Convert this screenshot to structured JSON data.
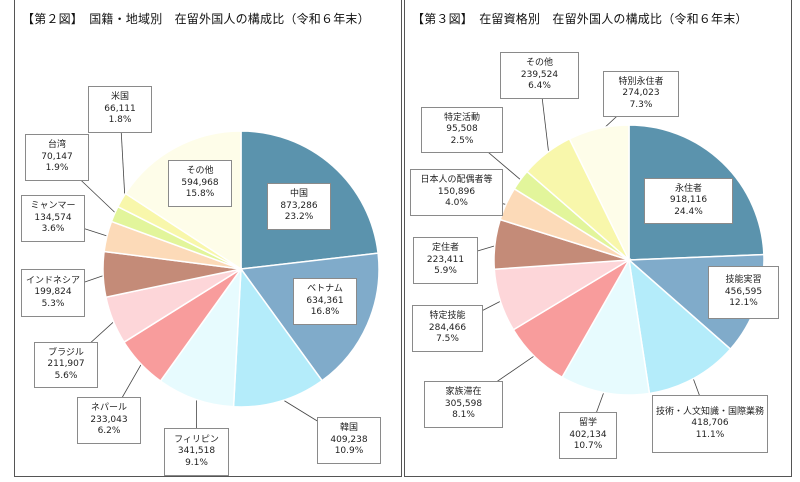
{
  "chart_data": [
    {
      "type": "pie",
      "title": "【第２図】　国籍・地域別　在留外国人の構成比（令和６年末）",
      "slices": [
        {
          "label": "中国",
          "value": 873286,
          "pct": "23.2%",
          "value_text": "873,286",
          "color": "#5b93ad"
        },
        {
          "label": "ベトナム",
          "value": 634361,
          "pct": "16.8%",
          "value_text": "634,361",
          "color": "#80abca"
        },
        {
          "label": "韓国",
          "value": 409238,
          "pct": "10.9%",
          "value_text": "409,238",
          "color": "#b4ecfa"
        },
        {
          "label": "フィリピン",
          "value": 341518,
          "pct": "9.1%",
          "value_text": "341,518",
          "color": "#e7fbfe"
        },
        {
          "label": "ネパール",
          "value": 233043,
          "pct": "6.2%",
          "value_text": "233,043",
          "color": "#f89c9c"
        },
        {
          "label": "ブラジル",
          "value": 211907,
          "pct": "5.6%",
          "value_text": "211,907",
          "color": "#fdd6d9"
        },
        {
          "label": "インドネシア",
          "value": 199824,
          "pct": "5.3%",
          "value_text": "199,824",
          "color": "#c48b78"
        },
        {
          "label": "ミャンマー",
          "value": 134574,
          "pct": "3.6%",
          "value_text": "134,574",
          "color": "#fcdab8"
        },
        {
          "label": "台湾",
          "value": 70147,
          "pct": "1.9%",
          "value_text": "70,147",
          "color": "#e2f59b"
        },
        {
          "label": "米国",
          "value": 66111,
          "pct": "1.8%",
          "value_text": "66,111",
          "color": "#f8f7ab"
        },
        {
          "label": "その他",
          "value": 594968,
          "pct": "15.8%",
          "value_text": "594,968",
          "color": "#fefde9"
        }
      ]
    },
    {
      "type": "pie",
      "title": "【第３図】　在留資格別　在留外国人の構成比（令和６年末）",
      "slices": [
        {
          "label": "永住者",
          "value": 918116,
          "pct": "24.4%",
          "value_text": "918,116",
          "color": "#5b93ad"
        },
        {
          "label": "技能実習",
          "value": 456595,
          "pct": "12.1%",
          "value_text": "456,595",
          "color": "#80abca"
        },
        {
          "label": "技術・人文知識・国際業務",
          "value": 418706,
          "pct": "11.1%",
          "value_text": "418,706",
          "color": "#b4ecfa"
        },
        {
          "label": "留学",
          "value": 402134,
          "pct": "10.7%",
          "value_text": "402,134",
          "color": "#e7fbfe"
        },
        {
          "label": "家族滞在",
          "value": 305598,
          "pct": "8.1%",
          "value_text": "305,598",
          "color": "#f89c9c"
        },
        {
          "label": "特定技能",
          "value": 284466,
          "pct": "7.5%",
          "value_text": "284,466",
          "color": "#fdd6d9"
        },
        {
          "label": "定住者",
          "value": 223411,
          "pct": "5.9%",
          "value_text": "223,411",
          "color": "#c48b78"
        },
        {
          "label": "日本人の配偶者等",
          "value": 150896,
          "pct": "4.0%",
          "value_text": "150,896",
          "color": "#fcdab8"
        },
        {
          "label": "特定活動",
          "value": 95508,
          "pct": "2.5%",
          "value_text": "95,508",
          "color": "#e2f59b"
        },
        {
          "label": "その他",
          "value": 239524,
          "pct": "6.4%",
          "value_text": "239,524",
          "color": "#f8f7ab"
        },
        {
          "label": "特別永住者",
          "value": 274023,
          "pct": "7.3%",
          "value_text": "274,023",
          "color": "#fefde9"
        }
      ]
    }
  ]
}
